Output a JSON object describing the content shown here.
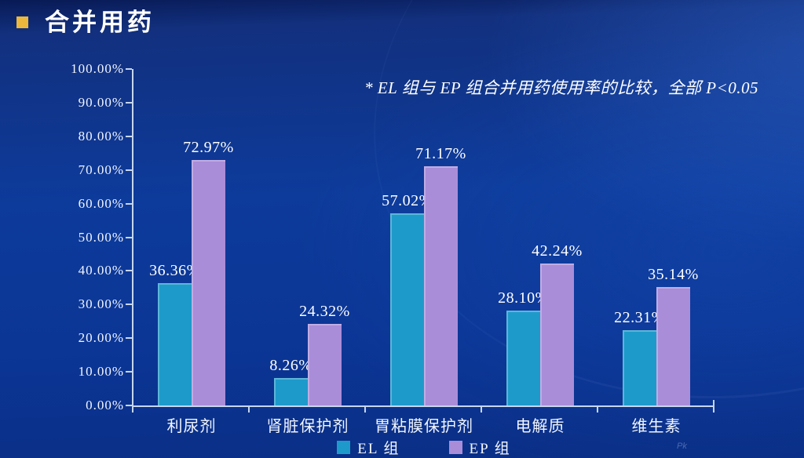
{
  "slide": {
    "title": "合并用药",
    "annotation": "* EL 组与 EP 组合并用药使用率的比较，全部 P<0.05",
    "footer_mark": "Pk"
  },
  "colors": {
    "background_top": "#081A55",
    "background_main": "#0D3B9B",
    "background_bottom": "#0A2E85",
    "title_bullet": "#ECB73D",
    "axis_line": "#C6D6EE",
    "label_text": "#FFFFFF",
    "el_bar": "#1E9ACA",
    "ep_bar": "#A98DD9"
  },
  "chart_data": {
    "type": "bar",
    "title": "合并用药使用率比较",
    "categories": [
      "利尿剂",
      "肾脏保护剂",
      "胃粘膜保护剂",
      "电解质",
      "维生素"
    ],
    "series": [
      {
        "name": "EL 组",
        "color": "#1E9ACA",
        "values": [
          36.36,
          8.26,
          57.02,
          28.1,
          22.31
        ],
        "labels": [
          "36.36%",
          "8.26%",
          "57.02%",
          "28.10%",
          "22.31%"
        ]
      },
      {
        "name": "EP 组",
        "color": "#A98DD9",
        "values": [
          72.97,
          24.32,
          71.17,
          42.24,
          35.14
        ],
        "labels": [
          "72.97%",
          "24.32%",
          "71.17%",
          "42.24%",
          "35.14%"
        ]
      }
    ],
    "y_axis": {
      "min": 0,
      "max": 100,
      "step": 10,
      "tick_labels": [
        "0.00%",
        "10.00%",
        "20.00%",
        "30.00%",
        "40.00%",
        "50.00%",
        "60.00%",
        "70.00%",
        "80.00%",
        "90.00%",
        "100.00%"
      ]
    },
    "xlabel": "",
    "ylabel": "",
    "grid": false,
    "legend_position": "bottom"
  }
}
